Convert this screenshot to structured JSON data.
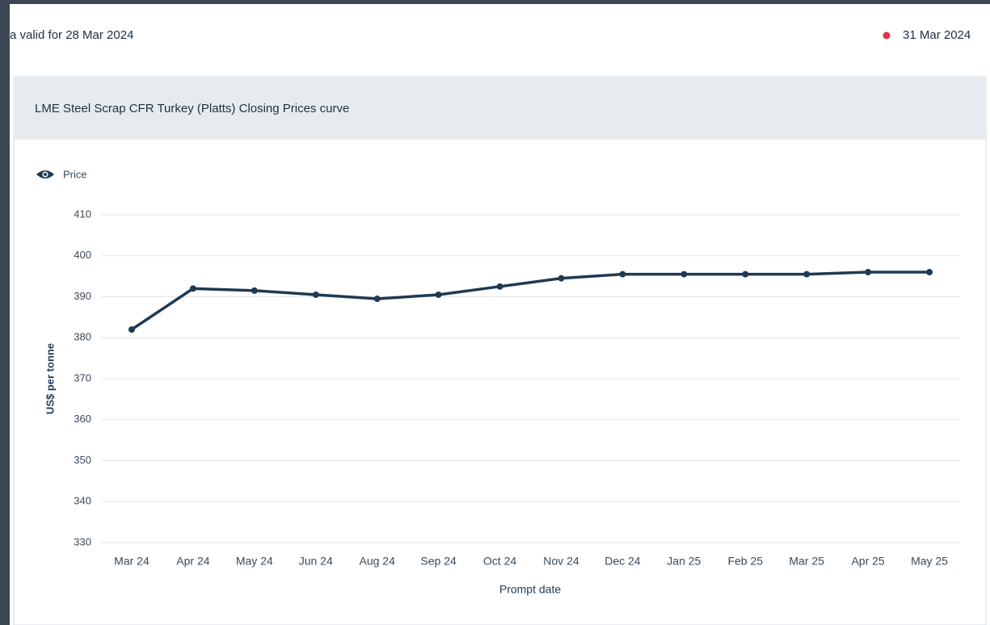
{
  "header": {
    "valid_text": "a valid for 28 Mar 2024",
    "date": "31 Mar 2024"
  },
  "chart_data": {
    "type": "line",
    "title": "LME Steel Scrap CFR Turkey (Platts) Closing Prices curve",
    "x_label": "Prompt date",
    "y_label": "US$ per tonne",
    "categories": [
      "Mar 24",
      "Apr 24",
      "May 24",
      "Jun 24",
      "Aug 24",
      "Sep 24",
      "Oct 24",
      "Nov 24",
      "Dec 24",
      "Jan 25",
      "Feb 25",
      "Mar 25",
      "Apr 25",
      "May 25"
    ],
    "series": [
      {
        "name": "Price",
        "color": "#1f3a52",
        "values": [
          382,
          392,
          391.5,
          390.5,
          389.5,
          390.5,
          392.5,
          394.5,
          395.5,
          395.5,
          395.5,
          395.5,
          396,
          396
        ]
      }
    ],
    "ylim": [
      330,
      410
    ],
    "yticks": [
      330,
      340,
      350,
      360,
      370,
      380,
      390,
      400,
      410
    ],
    "grid": true
  }
}
